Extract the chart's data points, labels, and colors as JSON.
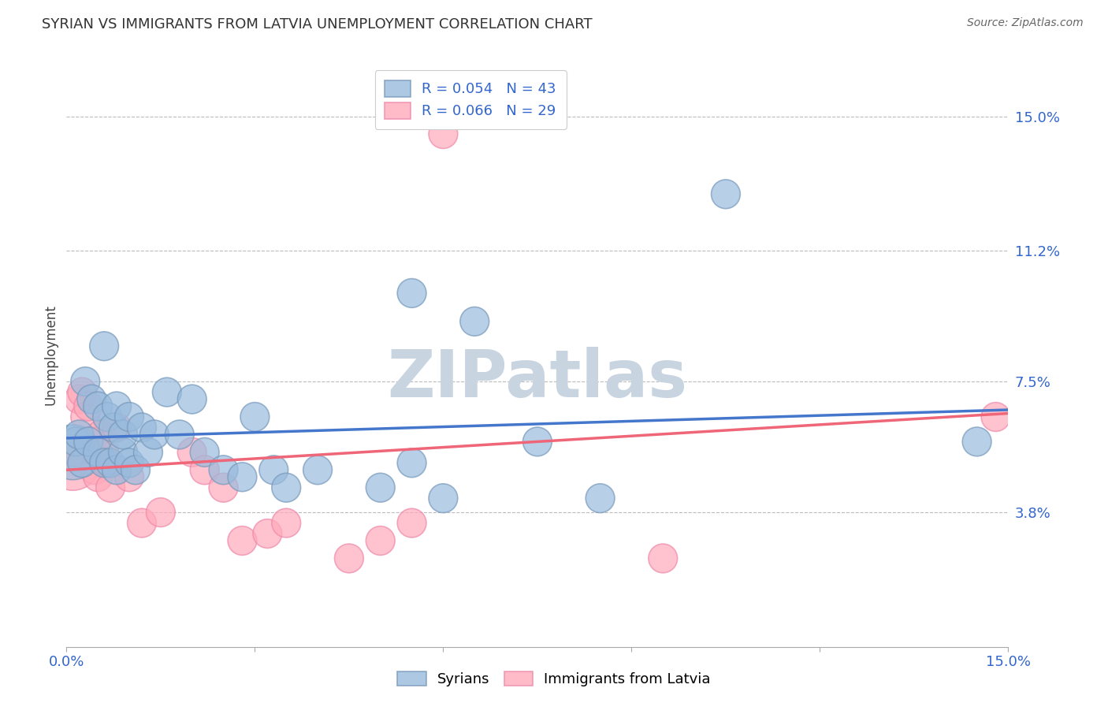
{
  "title": "SYRIAN VS IMMIGRANTS FROM LATVIA UNEMPLOYMENT CORRELATION CHART",
  "source": "Source: ZipAtlas.com",
  "ylabel": "Unemployment",
  "xlim": [
    0.0,
    15.0
  ],
  "ylim": [
    0.0,
    16.5
  ],
  "ytick_positions": [
    3.8,
    7.5,
    11.2,
    15.0
  ],
  "ytick_labels": [
    "3.8%",
    "7.5%",
    "11.2%",
    "15.0%"
  ],
  "xtick_positions": [
    0.0,
    3.0,
    6.0,
    9.0,
    12.0,
    15.0
  ],
  "xtick_labels": [
    "0.0%",
    "",
    "",
    "",
    "",
    "15.0%"
  ],
  "background_color": "#ffffff",
  "blue_fill": "#99BBDD",
  "blue_edge": "#7799BB",
  "pink_fill": "#FFAABB",
  "pink_edge": "#EE88AA",
  "blue_line": "#4477CC",
  "pink_line": "#EE6677",
  "watermark_color": "#C8D4E0",
  "legend_label_blue": "R = 0.054   N = 43",
  "legend_label_pink": "R = 0.066   N = 29",
  "legend_text_color": "#3366CC",
  "title_color": "#333333",
  "source_color": "#666666",
  "tick_color": "#3366CC",
  "watermark": "ZIPatlas",
  "syrians_x": [
    0.1,
    0.15,
    0.2,
    0.25,
    0.3,
    0.35,
    0.4,
    0.5,
    0.5,
    0.6,
    0.6,
    0.65,
    0.7,
    0.75,
    0.8,
    0.8,
    0.9,
    0.9,
    1.0,
    1.0,
    1.1,
    1.2,
    1.3,
    1.4,
    1.6,
    1.8,
    2.0,
    2.2,
    2.5,
    2.8,
    3.0,
    3.3,
    3.5,
    4.0,
    5.0,
    5.5,
    5.5,
    6.0,
    6.5,
    7.5,
    8.5,
    10.5,
    14.5
  ],
  "syrians_y": [
    5.5,
    5.8,
    6.0,
    5.2,
    7.5,
    5.8,
    7.0,
    6.8,
    5.5,
    5.2,
    8.5,
    6.5,
    5.2,
    6.2,
    5.0,
    6.8,
    5.5,
    6.0,
    5.2,
    6.5,
    5.0,
    6.2,
    5.5,
    6.0,
    7.2,
    6.0,
    7.0,
    5.5,
    5.0,
    4.8,
    6.5,
    5.0,
    4.5,
    5.0,
    4.5,
    10.0,
    5.2,
    4.2,
    9.2,
    5.8,
    4.2,
    12.8,
    5.8
  ],
  "syrians_sizes": [
    180,
    50,
    50,
    50,
    50,
    50,
    50,
    50,
    50,
    50,
    50,
    50,
    50,
    50,
    50,
    50,
    50,
    50,
    50,
    50,
    50,
    50,
    50,
    50,
    50,
    50,
    50,
    50,
    50,
    50,
    50,
    50,
    50,
    50,
    50,
    50,
    50,
    50,
    50,
    50,
    50,
    50,
    50
  ],
  "latvia_x": [
    0.1,
    0.15,
    0.2,
    0.25,
    0.3,
    0.35,
    0.4,
    0.45,
    0.5,
    0.55,
    0.6,
    0.65,
    0.7,
    0.8,
    1.0,
    1.2,
    1.5,
    2.0,
    2.2,
    2.5,
    2.8,
    3.2,
    3.5,
    4.5,
    5.0,
    5.5,
    6.0,
    9.5,
    14.8
  ],
  "latvia_y": [
    5.2,
    5.5,
    7.0,
    7.2,
    6.5,
    6.8,
    5.8,
    5.0,
    4.8,
    6.0,
    5.5,
    5.2,
    4.5,
    6.2,
    4.8,
    3.5,
    3.8,
    5.5,
    5.0,
    4.5,
    3.0,
    3.2,
    3.5,
    2.5,
    3.0,
    3.5,
    14.5,
    2.5,
    6.5
  ],
  "latvia_sizes": [
    180,
    50,
    50,
    50,
    50,
    50,
    50,
    50,
    50,
    50,
    50,
    50,
    50,
    50,
    50,
    50,
    50,
    50,
    50,
    50,
    50,
    50,
    50,
    50,
    50,
    50,
    50,
    50,
    50
  ]
}
